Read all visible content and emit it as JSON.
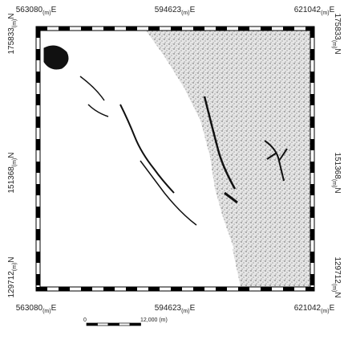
{
  "top_labels": [
    {
      "coord": "563080",
      "unit": "(m)",
      "dir": "E"
    },
    {
      "coord": "594623",
      "unit": "(m)",
      "dir": "E"
    },
    {
      "coord": "621042",
      "unit": "(m)",
      "dir": "E"
    }
  ],
  "bottom_labels": [
    {
      "coord": "563080",
      "unit": "(m)",
      "dir": "E"
    },
    {
      "coord": "594623",
      "unit": "(m)",
      "dir": "E"
    },
    {
      "coord": "621042",
      "unit": "(m)",
      "dir": "E"
    }
  ],
  "left_labels": [
    {
      "coord": "175833",
      "unit": "(m)",
      "dir": "N"
    },
    {
      "coord": "151368",
      "unit": "(m)",
      "dir": "N"
    },
    {
      "coord": "129712",
      "unit": "(m)",
      "dir": "N"
    }
  ],
  "right_labels": [
    {
      "coord": "175833",
      "unit": "(m)",
      "dir": "N"
    },
    {
      "coord": "151368",
      "unit": "(m)",
      "dir": "N"
    },
    {
      "coord": "129712",
      "unit": "(m)",
      "dir": "N"
    }
  ],
  "scale_bar": {
    "start": "0",
    "end": "12,000 (m)"
  }
}
